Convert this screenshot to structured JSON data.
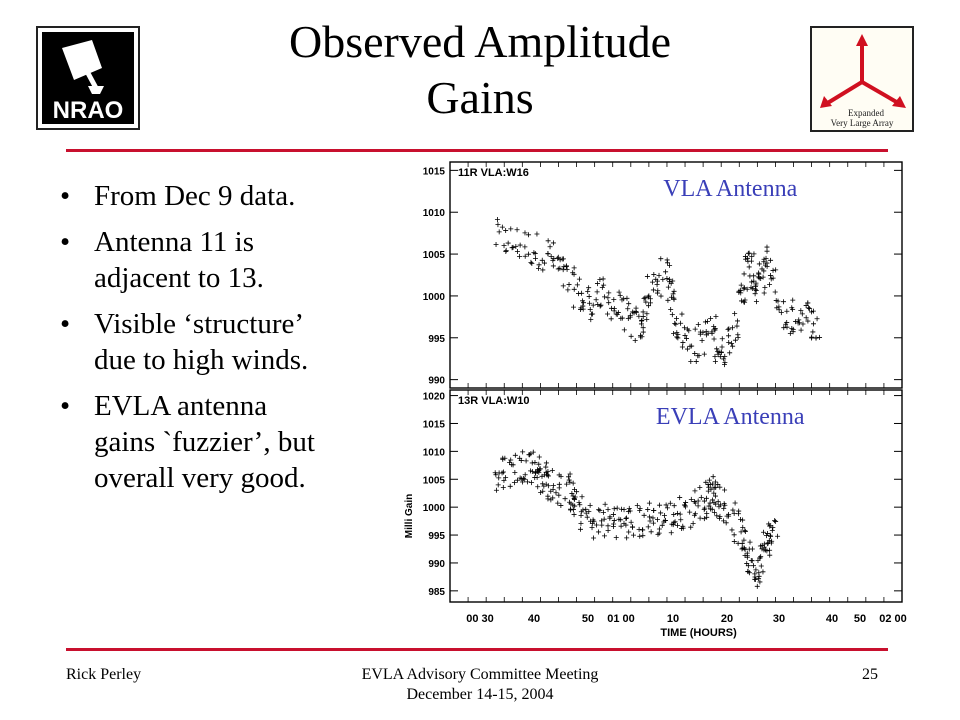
{
  "slide": {
    "title_line1": "Observed Amplitude",
    "title_line2": "Gains",
    "accent_color": "#c8102e",
    "bullets": [
      {
        "line1": "From Dec 9 data.",
        "line2": ""
      },
      {
        "line1": "Antenna 11 is",
        "line2": "adjacent  to 13."
      },
      {
        "line1": "Visible ‘structure’",
        "line2": "due to high winds."
      },
      {
        "line1": "EVLA antenna",
        "line2": "gains `fuzzier’, but",
        "line3": "overall very good."
      }
    ]
  },
  "logos": {
    "left": {
      "text": "NRAO",
      "icon": "radio-telescope-icon"
    },
    "right": {
      "line1": "Expanded",
      "line2": "Very Large Array",
      "icon": "evla-tri-arrow-icon"
    }
  },
  "footer": {
    "left": "Rick Perley",
    "center_line1": "EVLA Advisory Committee Meeting",
    "center_line2": "December 14-15, 2004",
    "page_number": "25"
  },
  "chart_data": [
    {
      "type": "scatter",
      "label": "11R VLA:W16",
      "annotation": "VLA Antenna",
      "annotation_color": "#3a3fb8",
      "ylim": [
        989,
        1016
      ],
      "yticks": [
        990,
        995,
        1000,
        1005,
        1010,
        1015
      ],
      "ytick_labels": [
        "990",
        "995",
        "1000",
        "1005",
        "1010",
        "1015"
      ],
      "xlim": [
        20,
        70
      ],
      "trend": [
        [
          25,
          1007
        ],
        [
          28,
          1006
        ],
        [
          31,
          1005
        ],
        [
          33,
          1002
        ],
        [
          35,
          999
        ],
        [
          37,
          1000
        ],
        [
          39,
          998
        ],
        [
          41,
          996
        ],
        [
          42,
          1000
        ],
        [
          44,
          1003
        ],
        [
          45,
          997
        ],
        [
          47,
          994
        ],
        [
          49,
          996
        ],
        [
          50,
          993
        ],
        [
          52,
          998
        ],
        [
          53,
          1004
        ],
        [
          54,
          1001
        ],
        [
          55,
          1004
        ],
        [
          57,
          997
        ],
        [
          59,
          998
        ],
        [
          61,
          996
        ]
      ]
    },
    {
      "type": "scatter",
      "label": "13R VLA:W10",
      "annotation": "EVLA Antenna",
      "annotation_color": "#3a3fb8",
      "ylabel": "Milli Gain",
      "xlabel": "TIME (HOURS)",
      "ylim": [
        983,
        1021
      ],
      "yticks": [
        985,
        990,
        995,
        1000,
        1005,
        1010,
        1015,
        1020
      ],
      "ytick_labels": [
        "985",
        "990",
        "995",
        "1000",
        "1005",
        "1010",
        "1015",
        "1020"
      ],
      "xlim": [
        20,
        70
      ],
      "xticks": [
        23,
        30,
        40,
        50,
        53,
        60,
        70
      ],
      "xtick_labels": [
        "00 30",
        "",
        "40",
        "50",
        "01 00",
        "10",
        "20",
        "30",
        "40",
        "50",
        "02 00"
      ],
      "xtick_positions": [
        26,
        30,
        33,
        36,
        39,
        42,
        45,
        48,
        51,
        54,
        57
      ],
      "trend": [
        [
          25,
          1005
        ],
        [
          27,
          1007
        ],
        [
          29,
          1008
        ],
        [
          30,
          1006
        ],
        [
          31,
          1004
        ],
        [
          33,
          1003
        ],
        [
          34,
          1000
        ],
        [
          36,
          997
        ],
        [
          38,
          998
        ],
        [
          40,
          997
        ],
        [
          42,
          998
        ],
        [
          44,
          998
        ],
        [
          46,
          999
        ],
        [
          48,
          1001
        ],
        [
          49,
          1003
        ],
        [
          50,
          1001
        ],
        [
          52,
          996
        ],
        [
          53,
          991
        ],
        [
          54,
          989
        ],
        [
          55,
          994
        ],
        [
          56,
          996
        ]
      ]
    }
  ]
}
